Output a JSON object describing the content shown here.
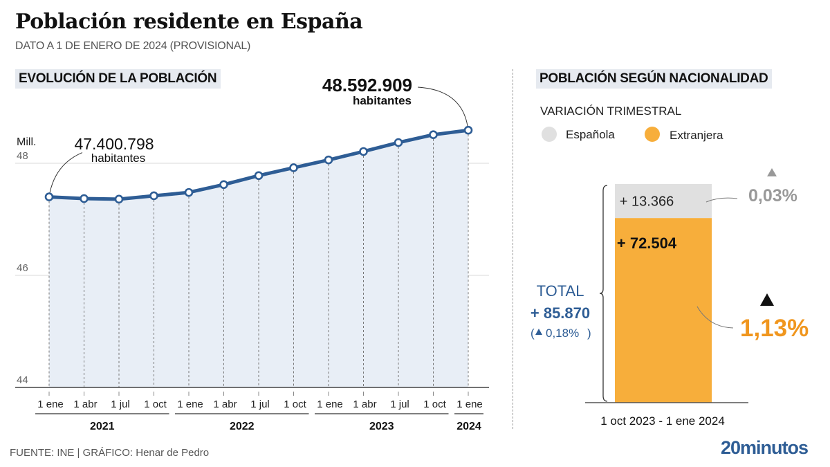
{
  "header": {
    "title": "Población residente en España",
    "subtitle": "DATO A 1 DE ENERO DE 2024 (PROVISIONAL)"
  },
  "footer": {
    "source": "FUENTE: INE  |  GRÁFICO: Henar de Pedro",
    "brand": "20minutos"
  },
  "colors": {
    "line": "#2e5d95",
    "area": "#e8eef6",
    "espanola": "#e0e0e0",
    "extranjera": "#f7ae3b",
    "total_text": "#2e5d95",
    "pct_grey": "#999999",
    "pct_orange": "#f0961e"
  },
  "chart_data": [
    {
      "type": "line",
      "title": "EVOLUCIÓN DE LA POBLACIÓN",
      "ylabel": "Mill.",
      "ylim": [
        44,
        48.6
      ],
      "yticks": [
        44,
        46,
        48
      ],
      "ytick_labels": [
        "44",
        "46",
        "48"
      ],
      "grid": true,
      "x": [
        "1 ene",
        "1 abr",
        "1 jul",
        "1 oct",
        "1 ene",
        "1 abr",
        "1 jul",
        "1 oct",
        "1 ene",
        "1 abr",
        "1 jul",
        "1 oct",
        "1 ene"
      ],
      "year_groups": [
        {
          "label": "2021",
          "start": 0,
          "end": 3
        },
        {
          "label": "2022",
          "start": 4,
          "end": 7
        },
        {
          "label": "2023",
          "start": 8,
          "end": 11
        },
        {
          "label": "2024",
          "start": 12,
          "end": 12
        }
      ],
      "series": [
        {
          "name": "Población (millones)",
          "values": [
            47.4,
            47.37,
            47.36,
            47.42,
            47.48,
            47.62,
            47.78,
            47.92,
            48.06,
            48.21,
            48.37,
            48.51,
            48.59
          ]
        }
      ],
      "annotations": [
        {
          "index": 0,
          "value": "47.400.798",
          "unit": "habitantes"
        },
        {
          "index": 12,
          "value": "48.592.909",
          "unit": "habitantes"
        }
      ]
    },
    {
      "type": "bar",
      "title": "POBLACIÓN SEGÚN NACIONALIDAD",
      "subtitle": "VARIACIÓN TRIMESTRAL",
      "categories": [
        "1 oct 2023 - 1 ene 2024"
      ],
      "legend": [
        "Española",
        "Extranjera"
      ],
      "legend_position": "top-left",
      "series": [
        {
          "name": "Extranjera",
          "values": [
            72504
          ],
          "label": "+ 72.504",
          "pct": "1,13%"
        },
        {
          "name": "Española",
          "values": [
            13366
          ],
          "label": "+ 13.366",
          "pct": "0,03%"
        }
      ],
      "total": {
        "label": "TOTAL",
        "value": "+ 85.870",
        "pct": "0,18%"
      }
    }
  ]
}
